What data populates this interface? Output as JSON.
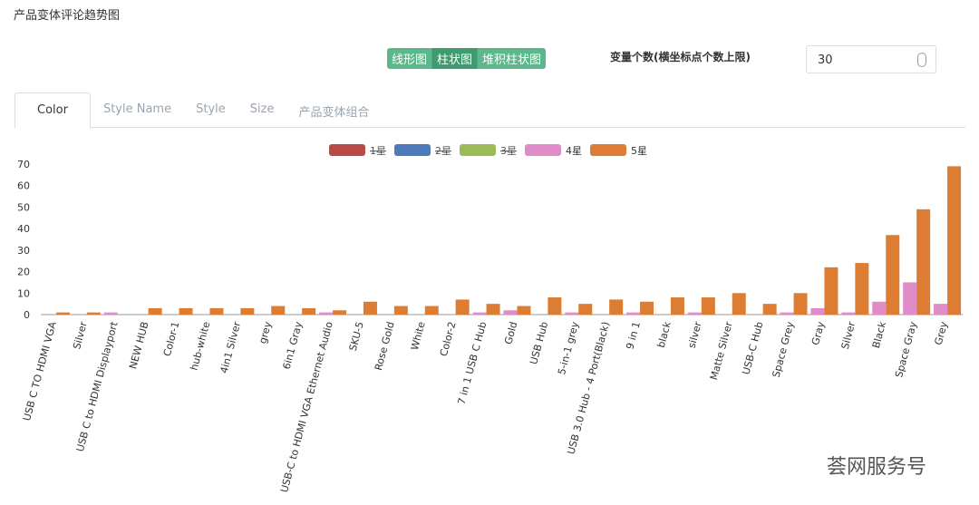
{
  "page_title": "产品变体评论趋势图",
  "chart_buttons": [
    "线形图",
    "柱状图",
    "堆积柱状图"
  ],
  "limit_label": "变量个数(横坐标点个数上限)",
  "limit_value": 30,
  "tabs": [
    "Color",
    "Style Name",
    "Style",
    "Size",
    "产品变体组合"
  ],
  "watermark": "荟网服务号",
  "chart_data": {
    "type": "bar",
    "categories": [
      "USB C TO HDMI VGA",
      "Silver",
      "USB C to HDMI Displayport",
      "NEW HUB",
      "Color-1",
      "hub-white",
      "4in1 Silver",
      "grey",
      "6in1 Gray",
      "USB-C to HDMI VGA Ethernet Audio",
      "SKU-5",
      "Rose Gold",
      "White",
      "Color-2",
      "7 in 1 USB C Hub",
      "Gold",
      "USB Hub",
      "5-in-1 grey",
      "USB 3.0 Hub - 4 Port(Black)",
      "9 in 1",
      "black",
      "silver",
      "Matte Silver",
      "USB-C Hub",
      "Space Grey",
      "Gray",
      "Silver",
      "Black",
      "Space Gray",
      "Grey"
    ],
    "series": [
      {
        "name": "1星",
        "color": "#b94b47",
        "visible": false
      },
      {
        "name": "2星",
        "color": "#4d7ab8",
        "visible": false
      },
      {
        "name": "3星",
        "color": "#9bbb59",
        "visible": false
      },
      {
        "name": "4星",
        "color": "#e08cc8",
        "visible": true,
        "values": [
          0,
          0,
          1,
          0,
          0,
          0,
          0,
          0,
          0,
          1,
          0,
          0,
          0,
          0,
          1,
          2,
          0,
          1,
          0,
          1,
          0,
          1,
          0,
          0,
          1,
          3,
          1,
          6,
          15,
          5
        ]
      },
      {
        "name": "5星",
        "color": "#dd7d33",
        "visible": true,
        "values": [
          1,
          1,
          0,
          3,
          3,
          3,
          3,
          4,
          3,
          2,
          6,
          4,
          4,
          7,
          5,
          4,
          8,
          5,
          7,
          6,
          8,
          8,
          10,
          5,
          10,
          22,
          24,
          37,
          49,
          69
        ]
      }
    ],
    "ylim": [
      0,
      70
    ],
    "yticks": [
      0,
      10,
      20,
      30,
      40,
      50,
      60,
      70
    ],
    "grid": false
  }
}
